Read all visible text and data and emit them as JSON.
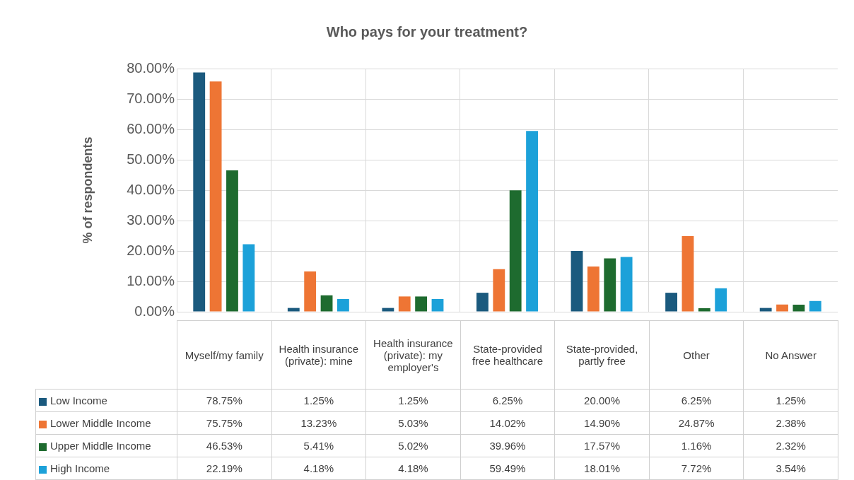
{
  "chart_data": {
    "type": "bar",
    "title": "Who pays for your treatment?",
    "ylabel": "% of respondents",
    "categories": [
      "Myself/my family",
      "Health insurance (private): mine",
      "Health insurance (private): my employer's",
      "State-provided free healthcare",
      "State-provided, partly free",
      "Other",
      "No Answer"
    ],
    "series": [
      {
        "name": "Low Income",
        "color": "#1b5a7e",
        "values": [
          78.75,
          1.25,
          1.25,
          6.25,
          20.0,
          6.25,
          1.25
        ],
        "value_labels": [
          "78.75%",
          "1.25%",
          "1.25%",
          "6.25%",
          "20.00%",
          "6.25%",
          "1.25%"
        ]
      },
      {
        "name": "Lower Middle Income",
        "color": "#ee7534",
        "values": [
          75.75,
          13.23,
          5.03,
          14.02,
          14.9,
          24.87,
          2.38
        ],
        "value_labels": [
          "75.75%",
          "13.23%",
          "5.03%",
          "14.02%",
          "14.90%",
          "24.87%",
          "2.38%"
        ]
      },
      {
        "name": "Upper Middle Income",
        "color": "#1e6b2f",
        "values": [
          46.53,
          5.41,
          5.02,
          39.96,
          17.57,
          1.16,
          2.32
        ],
        "value_labels": [
          "46.53%",
          "5.41%",
          "5.02%",
          "39.96%",
          "17.57%",
          "1.16%",
          "2.32%"
        ]
      },
      {
        "name": "High Income",
        "color": "#1ca1d9",
        "values": [
          22.19,
          4.18,
          4.18,
          59.49,
          18.01,
          7.72,
          3.54
        ],
        "value_labels": [
          "22.19%",
          "4.18%",
          "4.18%",
          "59.49%",
          "18.01%",
          "7.72%",
          "3.54%"
        ]
      }
    ],
    "ylim": [
      0,
      80
    ],
    "yticks": [
      {
        "value": 0,
        "label": "0.00%"
      },
      {
        "value": 10,
        "label": "10.00%"
      },
      {
        "value": 20,
        "label": "20.00%"
      },
      {
        "value": 30,
        "label": "30.00%"
      },
      {
        "value": 40,
        "label": "40.00%"
      },
      {
        "value": 50,
        "label": "50.00%"
      },
      {
        "value": 60,
        "label": "60.00%"
      },
      {
        "value": 70,
        "label": "70.00%"
      },
      {
        "value": 80,
        "label": "80.00%"
      }
    ],
    "grid": true,
    "legend": "bottom"
  }
}
